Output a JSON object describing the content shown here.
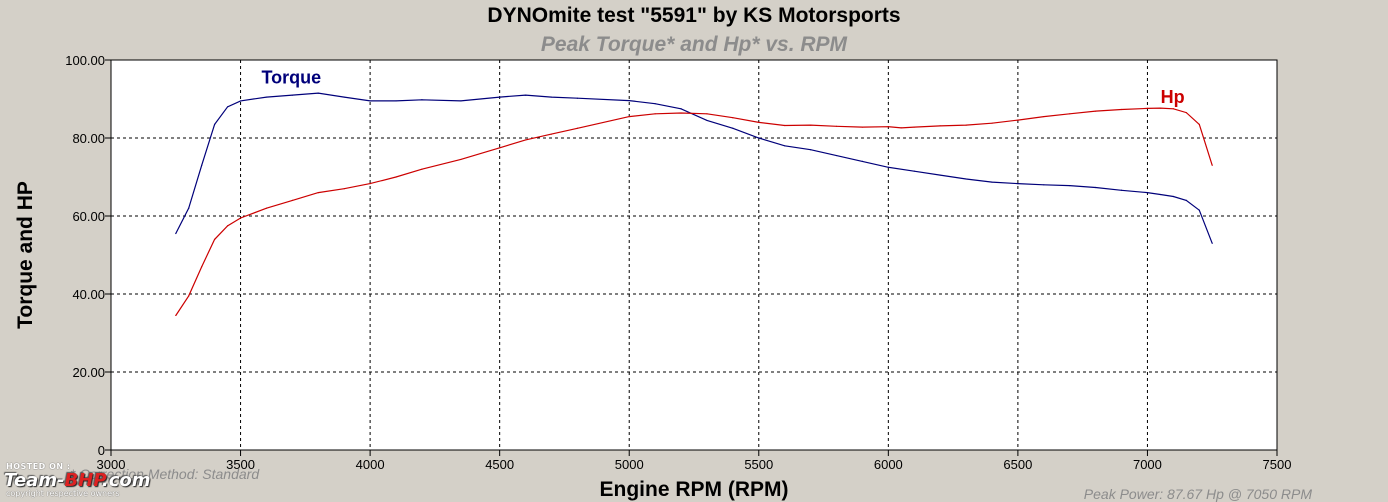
{
  "watermark": {
    "hosted": "HOSTED ON :",
    "brand_a": "Team-",
    "brand_b": "BHP",
    "brand_c": ".com",
    "copyright": "copyright respective owners"
  },
  "footnote": "* Correction Method: Standard",
  "peak_power": "Peak Power: 87.67 Hp @ 7050 RPM",
  "chart_data": {
    "type": "line",
    "title": "DYNOmite test \"5591\" by KS Motorsports",
    "subtitle": "Peak Torque* and Hp* vs. RPM",
    "xlabel": "Engine RPM (RPM)",
    "ylabel": "Torque and HP",
    "xlim": [
      3000,
      7500
    ],
    "ylim": [
      0,
      100
    ],
    "x_ticks": [
      "3000",
      "3500",
      "4000",
      "4500",
      "5000",
      "5500",
      "6000",
      "6500",
      "7000",
      "7500"
    ],
    "y_ticks": [
      "0",
      "20.00",
      "40.00",
      "60.00",
      "80.00",
      "100.00"
    ],
    "grid": true,
    "background": "#ffffff",
    "series": [
      {
        "name": "Torque",
        "color": "#00007a",
        "x": [
          3250,
          3300,
          3350,
          3400,
          3450,
          3500,
          3600,
          3700,
          3800,
          3900,
          4000,
          4100,
          4200,
          4350,
          4500,
          4600,
          4700,
          4800,
          5000,
          5100,
          5200,
          5300,
          5400,
          5500,
          5600,
          5700,
          5800,
          5900,
          6000,
          6100,
          6200,
          6300,
          6400,
          6500,
          6600,
          6700,
          6800,
          6900,
          7000,
          7050,
          7100,
          7150,
          7200,
          7250
        ],
        "values": [
          55.5,
          62,
          73,
          83.5,
          88,
          89.5,
          90.5,
          91,
          91.5,
          90.5,
          89.5,
          89.5,
          89.8,
          89.5,
          90.5,
          91,
          90.5,
          90.2,
          89.6,
          88.8,
          87.5,
          84.5,
          82.5,
          80,
          78,
          77,
          75.5,
          74,
          72.5,
          71.5,
          70.5,
          69.5,
          68.7,
          68.3,
          68,
          67.8,
          67.3,
          66.6,
          66,
          65.5,
          65,
          64,
          61.5,
          53
        ]
      },
      {
        "name": "Hp",
        "color": "#cc0000",
        "x": [
          3250,
          3300,
          3350,
          3400,
          3450,
          3500,
          3600,
          3700,
          3800,
          3900,
          4000,
          4100,
          4200,
          4350,
          4500,
          4600,
          4700,
          4800,
          5000,
          5100,
          5200,
          5300,
          5400,
          5500,
          5600,
          5700,
          5800,
          5900,
          6000,
          6050,
          6100,
          6200,
          6300,
          6400,
          6500,
          6600,
          6700,
          6800,
          6900,
          7000,
          7050,
          7100,
          7150,
          7200,
          7250
        ],
        "values": [
          34.5,
          39.5,
          47,
          54,
          57.5,
          59.5,
          62,
          64,
          66,
          67,
          68.3,
          70,
          72,
          74.5,
          77.5,
          79.5,
          81,
          82.5,
          85.5,
          86.2,
          86.4,
          86.2,
          85.2,
          84,
          83.2,
          83.3,
          83,
          82.8,
          82.9,
          82.6,
          82.8,
          83.1,
          83.3,
          83.8,
          84.6,
          85.5,
          86.2,
          86.9,
          87.3,
          87.6,
          87.67,
          87.5,
          86.5,
          83.5,
          73
        ]
      }
    ]
  }
}
